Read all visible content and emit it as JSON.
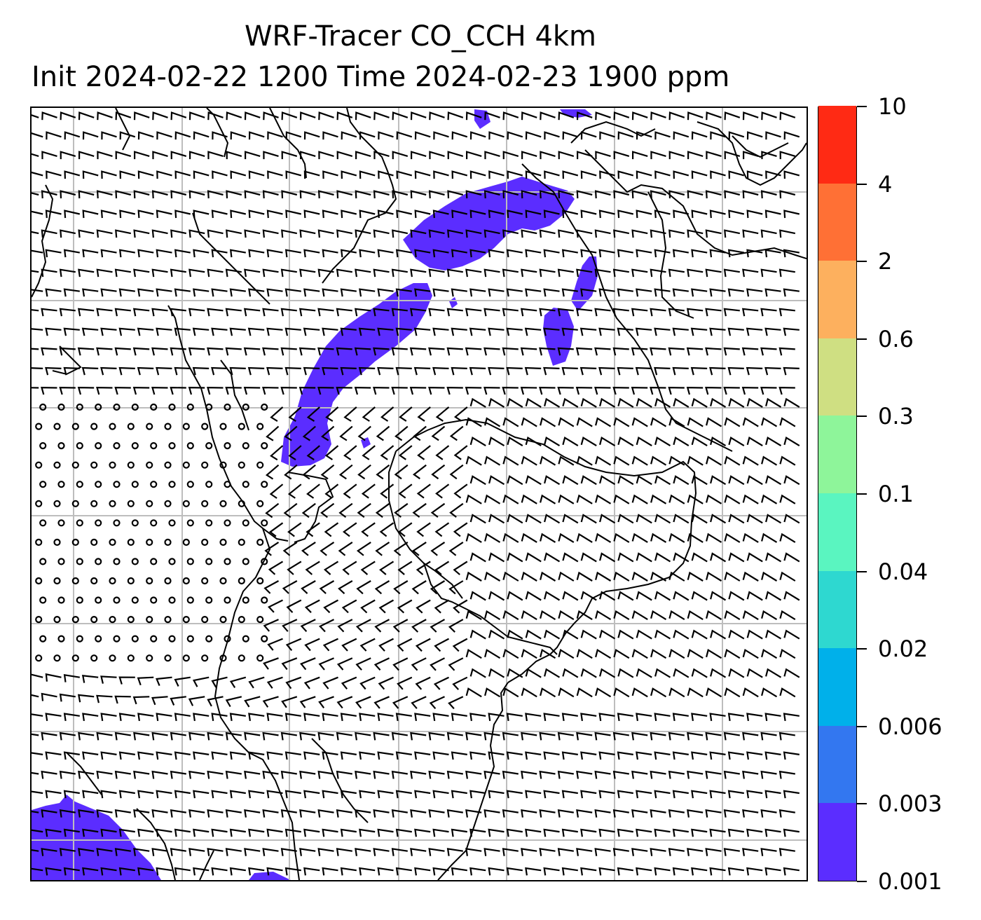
{
  "title": {
    "line1": "WRF-Tracer CO_CCH 4km",
    "line2": "Init 2024-02-22 1200 Time 2024-02-23 1900 ppm"
  },
  "colorbar": {
    "levels": [
      "0.001",
      "0.003",
      "0.006",
      "0.02",
      "0.04",
      "0.1",
      "0.3",
      "0.6",
      "2",
      "4",
      "10"
    ],
    "colors": [
      "#5b2dff",
      "#3377f0",
      "#00b0ea",
      "#2ed8d0",
      "#5af5c0",
      "#8ef59a",
      "#cfdf82",
      "#fdb05e",
      "#ff7035",
      "#ff2a14"
    ]
  },
  "map": {
    "wind_barbs": "black",
    "coastlines": "black",
    "gridlines": "#bdbdbd",
    "plume_color": "#5b2dff"
  }
}
